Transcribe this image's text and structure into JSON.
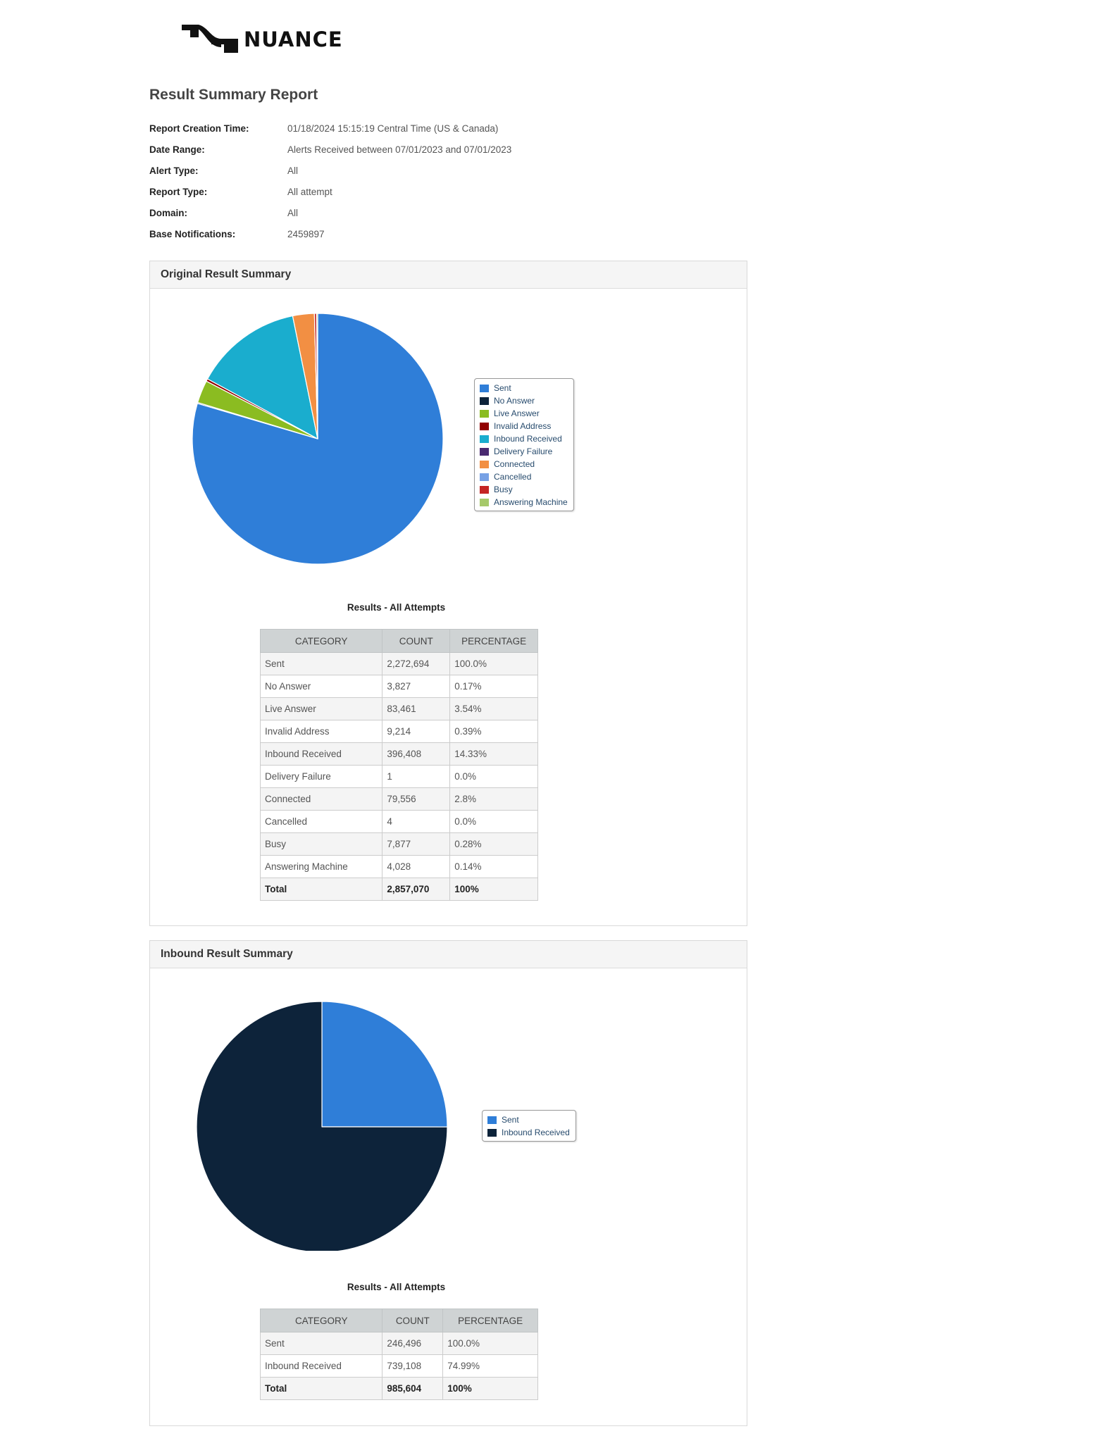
{
  "logo": {
    "text": "NUANCE"
  },
  "report": {
    "title": "Result Summary Report",
    "meta": [
      {
        "label": "Report Creation Time:",
        "value": "01/18/2024 15:15:19 Central Time (US & Canada)"
      },
      {
        "label": "Date Range:",
        "value": "Alerts Received between 07/01/2023 and 07/01/2023"
      },
      {
        "label": "Alert Type:",
        "value": "All"
      },
      {
        "label": "Report Type:",
        "value": "All attempt"
      },
      {
        "label": "Domain:",
        "value": "All"
      },
      {
        "label": "Base Notifications:",
        "value": "2459897"
      }
    ]
  },
  "chart_data": [
    {
      "type": "pie",
      "title": "Original Result Summary",
      "slices": [
        {
          "label": "Sent",
          "value": 2272694,
          "color": "#2f7ed8"
        },
        {
          "label": "No Answer",
          "value": 3827,
          "color": "#0d233a"
        },
        {
          "label": "Live Answer",
          "value": 83461,
          "color": "#8bbc21"
        },
        {
          "label": "Invalid Address",
          "value": 9214,
          "color": "#910000"
        },
        {
          "label": "Inbound Received",
          "value": 396408,
          "color": "#1aadce"
        },
        {
          "label": "Delivery Failure",
          "value": 1,
          "color": "#492970"
        },
        {
          "label": "Connected",
          "value": 79556,
          "color": "#f28f43"
        },
        {
          "label": "Cancelled",
          "value": 4,
          "color": "#77a1e5"
        },
        {
          "label": "Busy",
          "value": 7877,
          "color": "#c42525"
        },
        {
          "label": "Answering Machine",
          "value": 4028,
          "color": "#a6c96a"
        }
      ],
      "legend_position": "right"
    },
    {
      "type": "pie",
      "title": "Inbound Result Summary",
      "slices": [
        {
          "label": "Sent",
          "value": 246496,
          "color": "#2f7ed8"
        },
        {
          "label": "Inbound Received",
          "value": 739108,
          "color": "#0d233a"
        }
      ],
      "legend_position": "right"
    }
  ],
  "panels": [
    {
      "header": "Original Result Summary",
      "results_title": "Results - All Attempts",
      "table": {
        "columns": [
          "CATEGORY",
          "COUNT",
          "PERCENTAGE"
        ],
        "rows": [
          [
            "Sent",
            "2,272,694",
            "100.0%"
          ],
          [
            "No Answer",
            "3,827",
            "0.17%"
          ],
          [
            "Live Answer",
            "83,461",
            "3.54%"
          ],
          [
            "Invalid Address",
            "9,214",
            "0.39%"
          ],
          [
            "Inbound Received",
            "396,408",
            "14.33%"
          ],
          [
            "Delivery Failure",
            "1",
            "0.0%"
          ],
          [
            "Connected",
            "79,556",
            "2.8%"
          ],
          [
            "Cancelled",
            "4",
            "0.0%"
          ],
          [
            "Busy",
            "7,877",
            "0.28%"
          ],
          [
            "Answering Machine",
            "4,028",
            "0.14%"
          ]
        ],
        "total": [
          "Total",
          "2,857,070",
          "100%"
        ]
      }
    },
    {
      "header": "Inbound Result Summary",
      "results_title": "Results - All Attempts",
      "table": {
        "columns": [
          "CATEGORY",
          "COUNT",
          "PERCENTAGE"
        ],
        "rows": [
          [
            "Sent",
            "246,496",
            "100.0%"
          ],
          [
            "Inbound Received",
            "739,108",
            "74.99%"
          ]
        ],
        "total": [
          "Total",
          "985,604",
          "100%"
        ]
      }
    }
  ]
}
